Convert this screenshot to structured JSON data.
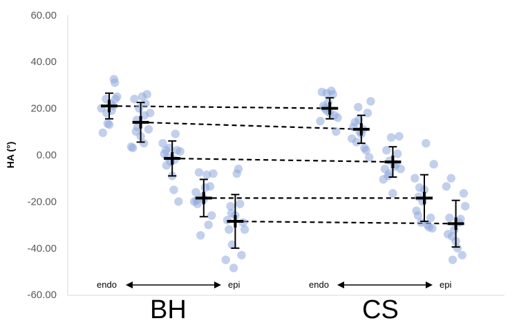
{
  "chart_data": {
    "type": "scatter",
    "title": "",
    "ylabel": "HA (°)",
    "ylim": [
      -60,
      60
    ],
    "ytick_labels": [
      "60.00",
      "40.00",
      "20.00",
      "0.00",
      "-20.00",
      "-40.00",
      "-60.00"
    ],
    "yticks": [
      60,
      40,
      20,
      0,
      -20,
      -40,
      -60
    ],
    "groups": [
      {
        "name": "BH",
        "endo_label": "endo",
        "epi_label": "epi"
      },
      {
        "name": "CS",
        "endo_label": "endo",
        "epi_label": "epi"
      }
    ],
    "point_color": "#8faadc",
    "mean_color": "#000000",
    "connector_style": "dashed",
    "positions": [
      1,
      2,
      3,
      4,
      5,
      8,
      9,
      10,
      11,
      12
    ],
    "means": [
      21,
      14,
      -1.5,
      -18.5,
      -28.5,
      20,
      11,
      -3,
      -18.5,
      -29.5
    ],
    "sd": [
      5.5,
      8.5,
      7.5,
      8,
      11.5,
      4.5,
      6,
      6.5,
      10,
      10
    ],
    "connections": [
      [
        0,
        5
      ],
      [
        1,
        6
      ],
      [
        2,
        7
      ],
      [
        3,
        8
      ],
      [
        4,
        9
      ]
    ],
    "points": [
      [
        [
          0.75,
          20
        ],
        [
          0.8,
          9.5
        ],
        [
          0.9,
          24
        ],
        [
          0.95,
          13.5
        ],
        [
          1.0,
          13
        ],
        [
          1.05,
          22
        ],
        [
          1.08,
          19
        ],
        [
          1.12,
          21
        ],
        [
          1.15,
          32.5
        ],
        [
          1.18,
          31
        ],
        [
          1.2,
          24
        ],
        [
          1.25,
          25
        ],
        [
          0.92,
          18
        ]
      ],
      [
        [
          1.7,
          3.5
        ],
        [
          1.75,
          3
        ],
        [
          1.8,
          24
        ],
        [
          1.85,
          10
        ],
        [
          1.9,
          12
        ],
        [
          1.95,
          20
        ],
        [
          2.0,
          8
        ],
        [
          2.05,
          25
        ],
        [
          2.1,
          5
        ],
        [
          2.15,
          22
        ],
        [
          2.2,
          26
        ],
        [
          2.25,
          11
        ],
        [
          2.3,
          18
        ],
        [
          1.88,
          15
        ],
        [
          2.12,
          17
        ]
      ],
      [
        [
          2.7,
          5
        ],
        [
          2.75,
          0.5
        ],
        [
          2.8,
          2
        ],
        [
          2.85,
          -1
        ],
        [
          2.9,
          3
        ],
        [
          2.95,
          -3
        ],
        [
          3.0,
          -9
        ],
        [
          3.05,
          -15
        ],
        [
          3.1,
          9
        ],
        [
          3.15,
          2
        ],
        [
          3.2,
          -20
        ],
        [
          3.25,
          1.5
        ],
        [
          2.82,
          -4.5
        ],
        [
          3.08,
          -2
        ]
      ],
      [
        [
          3.7,
          -20
        ],
        [
          3.75,
          -16
        ],
        [
          3.8,
          -21
        ],
        [
          3.85,
          -7.5
        ],
        [
          3.9,
          -34.5
        ],
        [
          3.95,
          -18
        ],
        [
          4.0,
          -19
        ],
        [
          4.05,
          -14
        ],
        [
          4.1,
          -8.5
        ],
        [
          4.15,
          -30
        ],
        [
          4.2,
          -13.5
        ],
        [
          4.25,
          -26
        ],
        [
          4.3,
          -8
        ],
        [
          3.78,
          -19.5
        ]
      ],
      [
        [
          4.7,
          -45
        ],
        [
          4.75,
          -28
        ],
        [
          4.8,
          -32
        ],
        [
          4.85,
          -22
        ],
        [
          4.9,
          -38.5
        ],
        [
          4.95,
          -48.5
        ],
        [
          5.0,
          -26
        ],
        [
          5.05,
          -8
        ],
        [
          5.1,
          -6
        ],
        [
          5.15,
          -21
        ],
        [
          5.2,
          -43
        ],
        [
          5.25,
          -29
        ],
        [
          5.3,
          -32
        ],
        [
          4.88,
          -25
        ]
      ],
      [
        [
          7.7,
          14.5
        ],
        [
          7.75,
          27
        ],
        [
          7.8,
          21
        ],
        [
          7.85,
          20
        ],
        [
          7.9,
          26.5
        ],
        [
          7.95,
          22.5
        ],
        [
          8.0,
          18
        ],
        [
          8.05,
          27.5
        ],
        [
          8.1,
          26
        ],
        [
          8.15,
          17
        ],
        [
          8.2,
          10
        ],
        [
          8.25,
          16
        ],
        [
          7.9,
          19
        ]
      ],
      [
        [
          8.7,
          7
        ],
        [
          8.75,
          12
        ],
        [
          8.8,
          14
        ],
        [
          8.85,
          5.5
        ],
        [
          8.9,
          20.5
        ],
        [
          8.95,
          10
        ],
        [
          9.0,
          9
        ],
        [
          9.05,
          11
        ],
        [
          9.1,
          3
        ],
        [
          9.15,
          2
        ],
        [
          9.2,
          18
        ],
        [
          9.25,
          -1
        ],
        [
          9.3,
          23
        ],
        [
          8.92,
          15
        ]
      ],
      [
        [
          9.7,
          -10.5
        ],
        [
          9.75,
          -6
        ],
        [
          9.8,
          2
        ],
        [
          9.85,
          -9
        ],
        [
          9.9,
          -2.5
        ],
        [
          9.95,
          7.5
        ],
        [
          10.0,
          -16.5
        ],
        [
          10.05,
          -5
        ],
        [
          10.1,
          -4
        ],
        [
          10.15,
          0.5
        ],
        [
          10.2,
          8
        ],
        [
          10.25,
          -6
        ],
        [
          9.88,
          -8
        ]
      ],
      [
        [
          10.7,
          -10
        ],
        [
          10.75,
          -24
        ],
        [
          10.8,
          -26
        ],
        [
          10.85,
          -14
        ],
        [
          10.9,
          -29
        ],
        [
          10.95,
          -20
        ],
        [
          11.0,
          -15
        ],
        [
          11.05,
          5
        ],
        [
          11.1,
          -30
        ],
        [
          11.15,
          -31
        ],
        [
          11.2,
          -27
        ],
        [
          11.25,
          -31.5
        ],
        [
          11.3,
          -4
        ],
        [
          10.82,
          -18
        ]
      ],
      [
        [
          11.7,
          -13.5
        ],
        [
          11.75,
          -34
        ],
        [
          11.8,
          -27
        ],
        [
          11.85,
          -10
        ],
        [
          11.9,
          -45
        ],
        [
          11.95,
          -32
        ],
        [
          12.0,
          -37
        ],
        [
          12.05,
          -40
        ],
        [
          12.1,
          -29
        ],
        [
          12.15,
          -27.5
        ],
        [
          12.2,
          -43
        ],
        [
          12.25,
          -16.5
        ],
        [
          12.3,
          -22
        ],
        [
          11.88,
          -35
        ]
      ]
    ]
  }
}
